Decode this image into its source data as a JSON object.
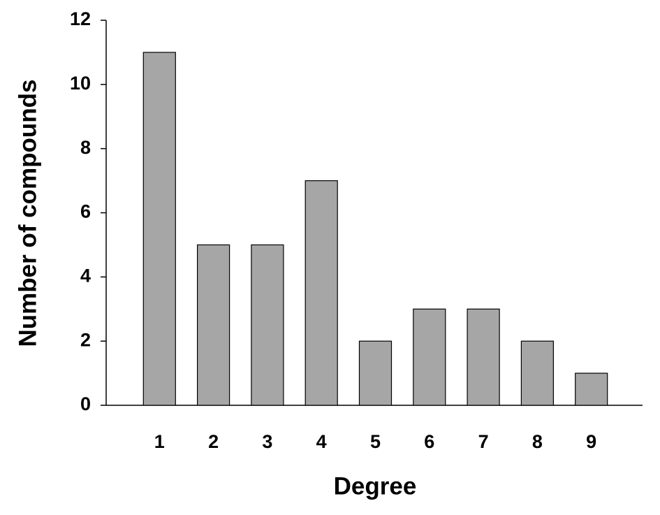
{
  "chart_data": {
    "type": "bar",
    "x_label": "Degree",
    "y_label": "Number of compounds",
    "categories": [
      "1",
      "2",
      "3",
      "4",
      "5",
      "6",
      "7",
      "8",
      "9"
    ],
    "values": [
      11,
      5,
      5,
      7,
      2,
      3,
      3,
      2,
      1
    ],
    "color": "#a6a6a6",
    "ylim": [
      0,
      12
    ],
    "yticks": [
      0,
      2,
      4,
      6,
      8,
      10,
      12
    ],
    "grid": false
  }
}
